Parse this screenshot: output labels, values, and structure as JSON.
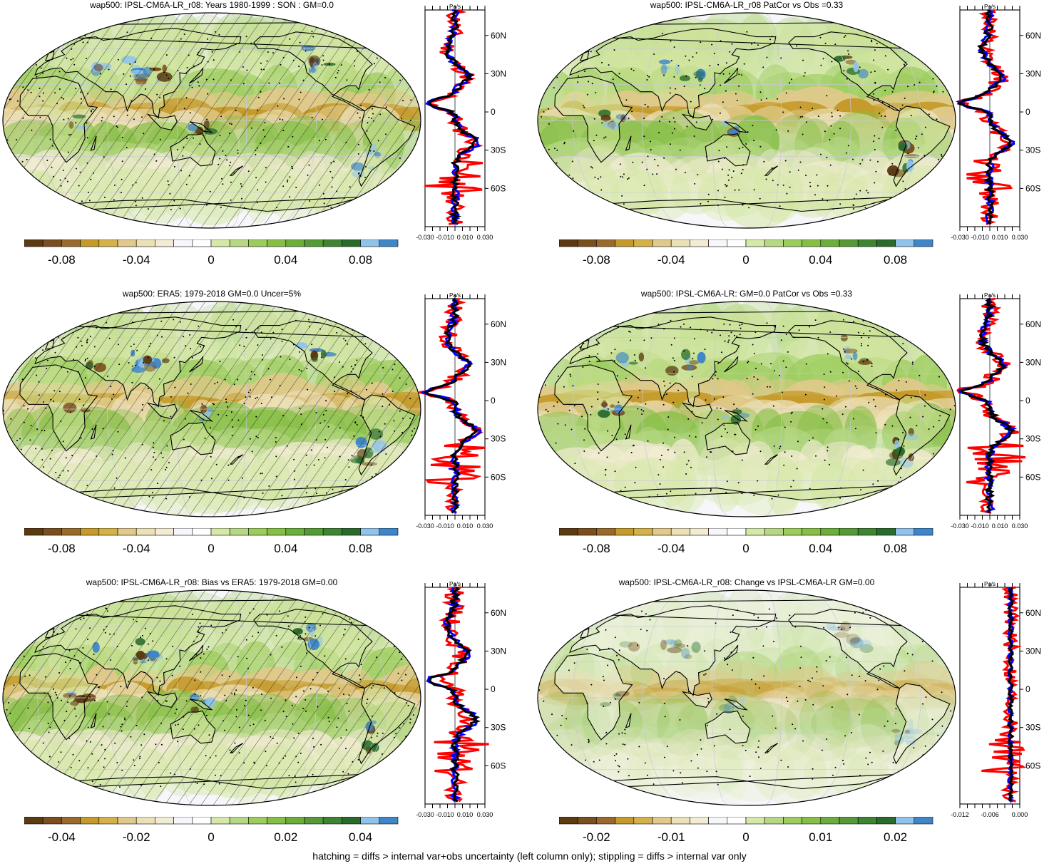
{
  "panels": [
    {
      "title": "wap500: IPSL-CM6A-LR_r08: Years 1980-1999 : SON : GM=0.0",
      "hatched": true,
      "profile_unit": "Pa/s",
      "profile_ticks": [
        "-0.030",
        "-0.010",
        "0.010",
        "0.030"
      ],
      "lat_labels": [
        "60N",
        "30N",
        "0",
        "30S",
        "60S"
      ],
      "colorbar_labels": [
        "-0.08",
        "-0.04",
        "0",
        "0.04",
        "0.08"
      ]
    },
    {
      "title": "wap500: IPSL-CM6A-LR_r08 PatCor vs Obs =0.33",
      "hatched": false,
      "profile_unit": "Pa/s",
      "profile_ticks": [
        "-0.030",
        "-0.010",
        "0.010",
        "0.030"
      ],
      "lat_labels": [
        "60N",
        "30N",
        "0",
        "30S",
        "60S"
      ],
      "colorbar_labels": [
        "-0.08",
        "-0.04",
        "0",
        "0.04",
        "0.08"
      ]
    },
    {
      "title": "wap500: ERA5: 1979-2018 GM=0.0 Uncer=5%",
      "hatched": true,
      "profile_unit": "Pa/s",
      "profile_ticks": [
        "-0.030",
        "-0.010",
        "0.010",
        "0.030"
      ],
      "lat_labels": [
        "60N",
        "30N",
        "0",
        "30S",
        "60S"
      ],
      "colorbar_labels": [
        "-0.08",
        "-0.04",
        "0",
        "0.04",
        "0.08"
      ]
    },
    {
      "title": "wap500: IPSL-CM6A-LR: GM=0.0 PatCor vs Obs =0.33",
      "hatched": false,
      "profile_unit": "Pa/s",
      "profile_ticks": [
        "-0.030",
        "-0.010",
        "0.010",
        "0.030"
      ],
      "lat_labels": [
        "60N",
        "30N",
        "0",
        "30S",
        "60S"
      ],
      "colorbar_labels": [
        "-0.08",
        "-0.04",
        "0",
        "0.04",
        "0.08"
      ]
    },
    {
      "title": "wap500: IPSL-CM6A-LR_r08: Bias vs ERA5: 1979-2018  GM=0.00",
      "hatched": true,
      "profile_unit": "Pa/s",
      "profile_ticks": [
        "-0.030",
        "-0.010",
        "0.010",
        "0.030"
      ],
      "lat_labels": [
        "60N",
        "30N",
        "0",
        "30S",
        "60S"
      ],
      "colorbar_labels": [
        "-0.04",
        "-0.02",
        "0",
        "0.02",
        "0.04"
      ]
    },
    {
      "title": "wap500: IPSL-CM6A-LR_r08: Change vs IPSL-CM6A-LR GM=0.00",
      "hatched": false,
      "profile_unit": "Pa/s",
      "profile_ticks": [
        "-0.012",
        "-0.006",
        "0.000"
      ],
      "lat_labels": [
        "60N",
        "30N",
        "0",
        "30S",
        "60S"
      ],
      "colorbar_labels": [
        "-0.02",
        "-0.01",
        "0",
        "0.01",
        "0.02"
      ]
    }
  ],
  "colors": {
    "colorbar": [
      "#5c3a12",
      "#7a4e1e",
      "#9a6a2c",
      "#c59a2a",
      "#d5b14a",
      "#e0c98a",
      "#ece0b6",
      "#f3ecd4",
      "#f7f7fb",
      "#ffffff",
      "#d5e8a8",
      "#b6d884",
      "#9ccc5c",
      "#86bf46",
      "#6cae3c",
      "#559a36",
      "#3e8432",
      "#2a6b2c",
      "#8fc3ec",
      "#3f86c8"
    ],
    "model_line": "#000000",
    "obs_line": "#0000ff",
    "diff_line": "#ff0000",
    "ocean_neutral": "#f7f7fb"
  },
  "footer": "hatching = diffs > internal var+obs uncertainty (left column only); stippling = diffs > internal var only"
}
